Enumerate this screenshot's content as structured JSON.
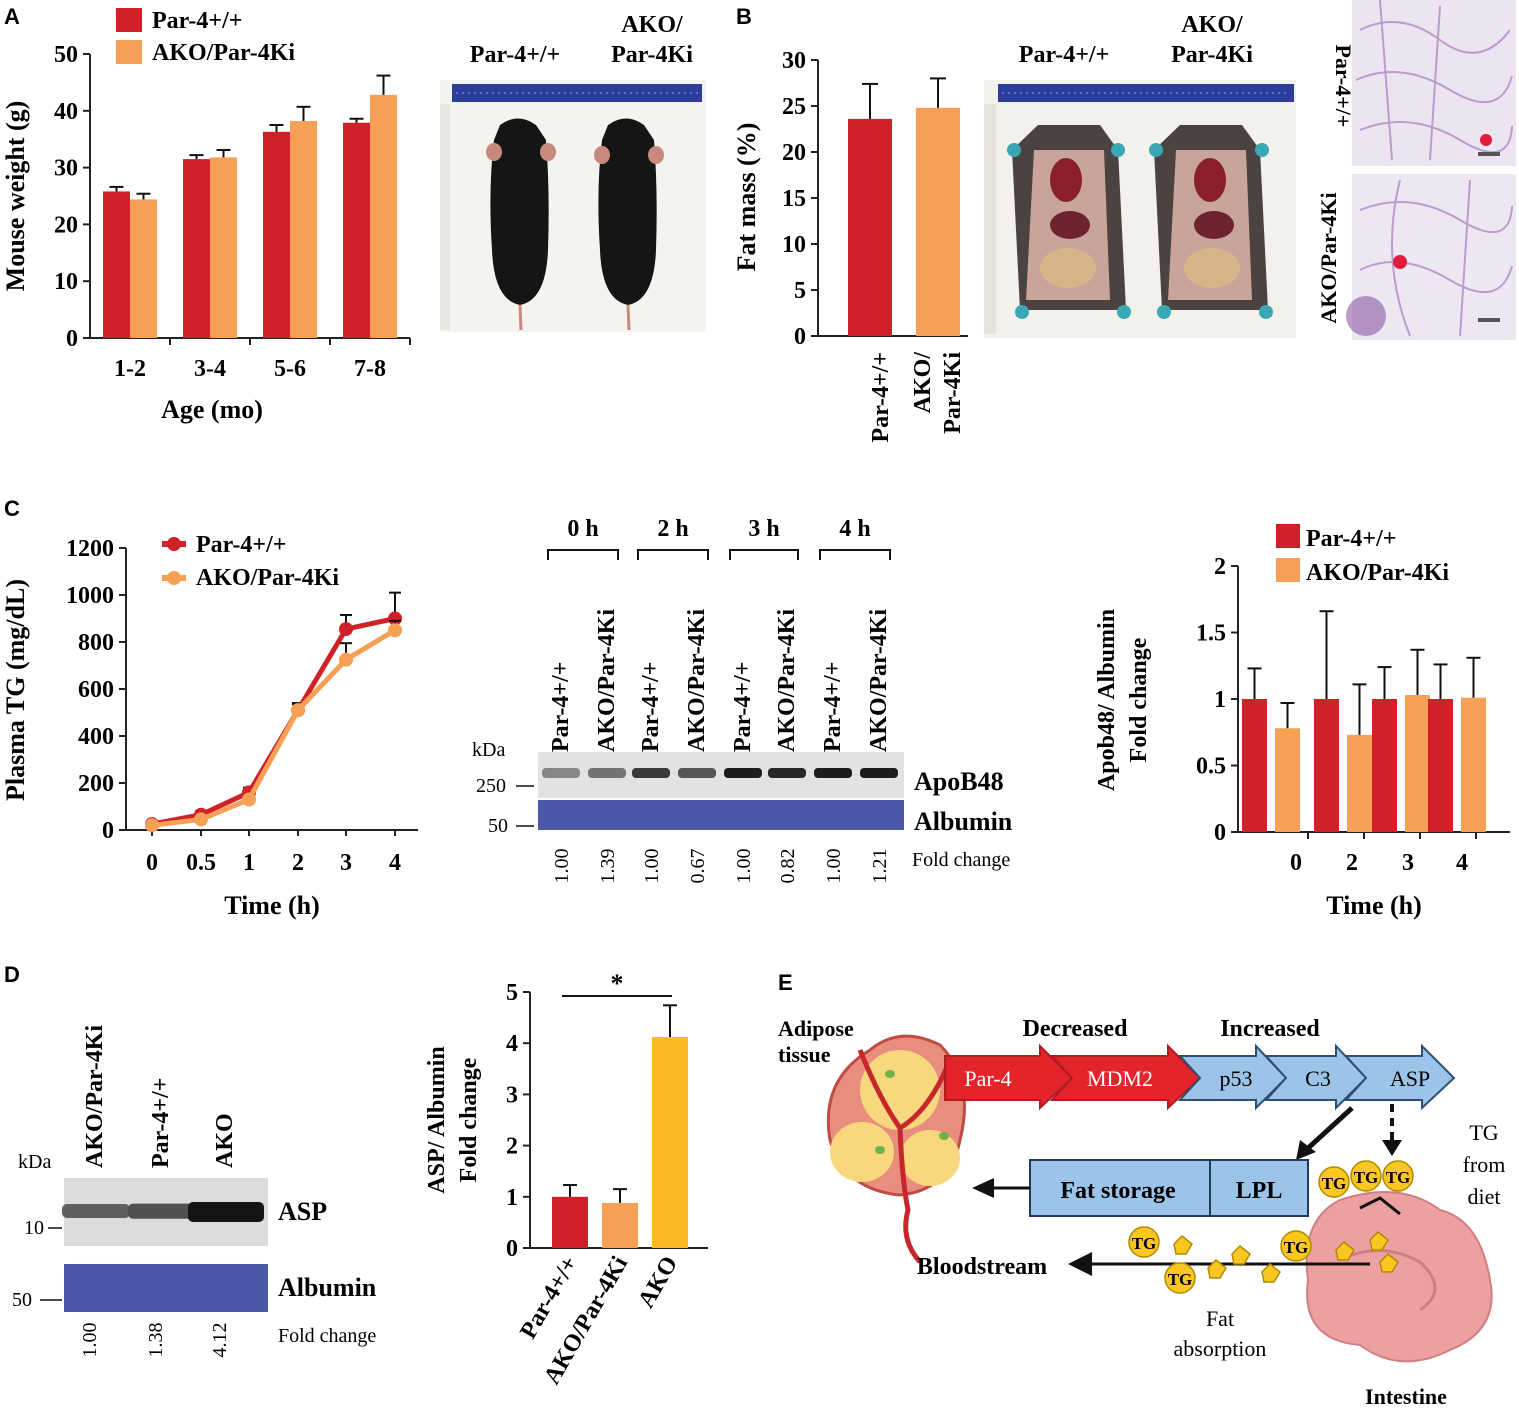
{
  "colors": {
    "red": "#cf2127",
    "orange": "#f6a055",
    "gold": "#fbb827",
    "axis": "#222222",
    "blot_blue": "#4b57a8",
    "arrow_red": "#e3252b",
    "arrow_blue": "#9cc4e8",
    "fat_yellow": "#f9d77f",
    "intestine": "#eca0a1"
  },
  "panel_letters": {
    "a": "A",
    "b": "B",
    "c": "C",
    "d": "D",
    "e": "E"
  },
  "photo_labels": {
    "a_left": "Par-4+/+",
    "a_right_line1": "AKO/",
    "a_right_line2": "Par-4Ki",
    "b_left": "Par-4+/+",
    "b_right_line1": "AKO/",
    "b_right_line2": "Par-4Ki",
    "histo_top": "Par-4+/+",
    "histo_bottom": "AKO/Par-4Ki"
  },
  "chart_data": [
    {
      "id": "A",
      "type": "bar",
      "legend": [
        "Par-4+/+",
        "AKO/Par-4Ki"
      ],
      "categories": [
        "1-2",
        "3-4",
        "5-6",
        "7-8"
      ],
      "series": [
        {
          "name": "Par-4+/+",
          "values": [
            25.8,
            31.5,
            36.3,
            37.9
          ],
          "errors": [
            0.8,
            0.7,
            1.2,
            0.7
          ]
        },
        {
          "name": "AKO/Par-4Ki",
          "values": [
            24.4,
            31.8,
            38.2,
            42.8
          ],
          "errors": [
            1.0,
            1.3,
            2.5,
            3.4
          ]
        }
      ],
      "xlabel": "Age (mo)",
      "ylabel": "Mouse weight (g)",
      "ylim": [
        0,
        50
      ],
      "yticks": [
        "0",
        "10",
        "20",
        "30",
        "40",
        "50"
      ]
    },
    {
      "id": "B",
      "type": "bar",
      "categories": [
        "Par-4+/+",
        "AKO/ Par-4Ki"
      ],
      "category_lines": [
        [
          "Par-4+/+"
        ],
        [
          "AKO/",
          "Par-4Ki"
        ]
      ],
      "values": [
        23.6,
        24.8
      ],
      "errors": [
        3.8,
        3.2
      ],
      "ylabel": "Fat mass (%)",
      "ylim": [
        0,
        30
      ],
      "yticks": [
        "0",
        "5",
        "10",
        "15",
        "20",
        "25",
        "30"
      ]
    },
    {
      "id": "C-line",
      "type": "line",
      "legend": [
        "Par-4+/+",
        "AKO/Par-4Ki"
      ],
      "x": [
        0,
        0.5,
        1,
        2,
        3,
        4
      ],
      "xticks": [
        "0",
        "0.5",
        "1",
        "2",
        "3",
        "4"
      ],
      "series": [
        {
          "name": "Par-4+/+",
          "values": [
            25,
            65,
            160,
            510,
            855,
            900
          ],
          "errors": [
            10,
            15,
            20,
            30,
            60,
            110
          ]
        },
        {
          "name": "AKO/Par-4Ki",
          "values": [
            20,
            45,
            130,
            510,
            725,
            850
          ],
          "errors": [
            8,
            12,
            15,
            25,
            70,
            40
          ]
        }
      ],
      "xlabel": "Time (h)",
      "ylabel": "Plasma TG (mg/dL)",
      "ylim": [
        0,
        1200
      ],
      "yticks": [
        "0",
        "200",
        "400",
        "600",
        "800",
        "1000",
        "1200"
      ]
    },
    {
      "id": "C-bar",
      "type": "bar",
      "legend": [
        "Par-4+/+",
        "AKO/Par-4Ki"
      ],
      "categories": [
        "0",
        "2",
        "3",
        "4"
      ],
      "series": [
        {
          "name": "Par-4+/+",
          "values": [
            1.0,
            1.0,
            1.0,
            1.0
          ],
          "errors": [
            0.23,
            0.66,
            0.24,
            0.26
          ]
        },
        {
          "name": "AKO/Par-4Ki",
          "values": [
            0.78,
            0.73,
            1.03,
            1.01
          ],
          "errors": [
            0.19,
            0.38,
            0.34,
            0.3
          ]
        }
      ],
      "xlabel": "Time (h)",
      "ylabel_line1": "Apob48/ Albumin",
      "ylabel_line2": "Fold change",
      "ylim": [
        0,
        2
      ],
      "yticks": [
        "0",
        "0.5",
        "1",
        "1.5",
        "2"
      ]
    },
    {
      "id": "D-bar",
      "type": "bar",
      "categories": [
        "Par-4+/+",
        "AKO/Par-4Ki",
        "AKO"
      ],
      "values": [
        1.0,
        0.88,
        4.12
      ],
      "errors": [
        0.23,
        0.27,
        0.62
      ],
      "colors_key": [
        "red",
        "orange",
        "gold"
      ],
      "significance": "*",
      "ylabel_line1": "ASP/ Albumin",
      "ylabel_line2": "Fold change",
      "ylim": [
        0,
        5
      ],
      "yticks": [
        "0",
        "1",
        "2",
        "3",
        "4",
        "5"
      ]
    }
  ],
  "blot_c": {
    "groups": [
      "0 h",
      "2 h",
      "3 h",
      "4 h"
    ],
    "lanes": [
      "Par-4+/+",
      "AKO/Par-4Ki",
      "Par-4+/+",
      "AKO/Par-4Ki",
      "Par-4+/+",
      "AKO/Par-4Ki",
      "Par-4+/+",
      "AKO/Par-4Ki"
    ],
    "fold": [
      "1.00",
      "1.39",
      "1.00",
      "0.67",
      "1.00",
      "0.82",
      "1.00",
      "1.21"
    ],
    "band_intensity": [
      0.35,
      0.45,
      0.75,
      0.6,
      0.9,
      0.85,
      0.9,
      0.9
    ],
    "kda_label": "kDa",
    "marker_top": "250",
    "marker_bottom": "50",
    "band_top": "ApoB48",
    "band_bottom": "Albumin",
    "fold_label": "Fold change"
  },
  "blot_d": {
    "lanes": [
      "AKO/Par-4Ki",
      "Par-4+/+",
      "AKO"
    ],
    "fold": [
      "1.00",
      "1.38",
      "4.12"
    ],
    "band_intensity": [
      0.5,
      0.6,
      1.0
    ],
    "kda_label": "kDa",
    "marker_top": "10",
    "marker_bottom": "50",
    "band_top": "ASP",
    "band_bottom": "Albumin",
    "fold_label": "Fold change"
  },
  "pathway_e": {
    "adipose_line1": "Adipose",
    "adipose_line2": "tissue",
    "decreased": "Decreased",
    "increased": "Increased",
    "par4": "Par-4",
    "mdm2": "MDM2",
    "p53": "p53",
    "c3": "C3",
    "asp": "ASP",
    "fat_storage": "Fat  storage",
    "lpl": "LPL",
    "tg": "TG",
    "tg_diet_line1": "TG",
    "tg_diet_line2": "from",
    "tg_diet_line3": "diet",
    "bloodstream": "Bloodstream",
    "fat_abs_line1": "Fat",
    "fat_abs_line2": "absorption",
    "intestine": "Intestine"
  }
}
